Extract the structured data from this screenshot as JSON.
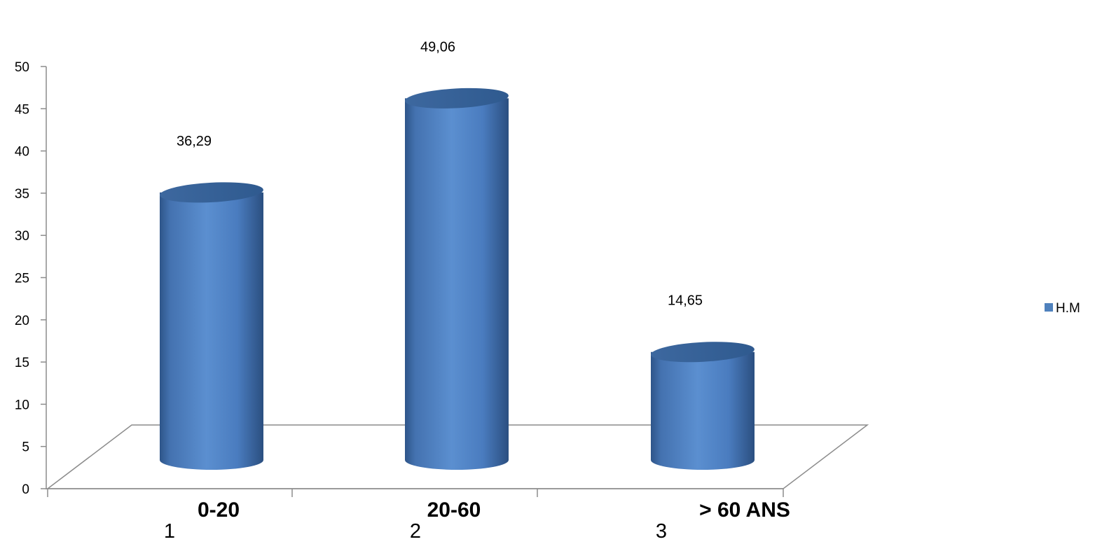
{
  "chart_data": {
    "type": "bar",
    "style": "3d-cylinder",
    "categories": [
      "0-20",
      "20-60",
      "> 60 ANS"
    ],
    "category_index_labels": [
      "1",
      "2",
      "3"
    ],
    "series": [
      {
        "name": "H.M",
        "values": [
          36.29,
          49.06,
          14.65
        ],
        "value_labels": [
          "36,29",
          "49,06",
          "14,65"
        ],
        "color": "#4F81BD"
      }
    ],
    "ylim": [
      0,
      50
    ],
    "ytick_step": 5,
    "yticks": [
      "0",
      "5",
      "10",
      "15",
      "20",
      "25",
      "30",
      "35",
      "40",
      "45",
      "50"
    ],
    "grid": false,
    "legend_position": "right"
  },
  "legend": {
    "label": "H.M",
    "color": "#4F81BD"
  }
}
